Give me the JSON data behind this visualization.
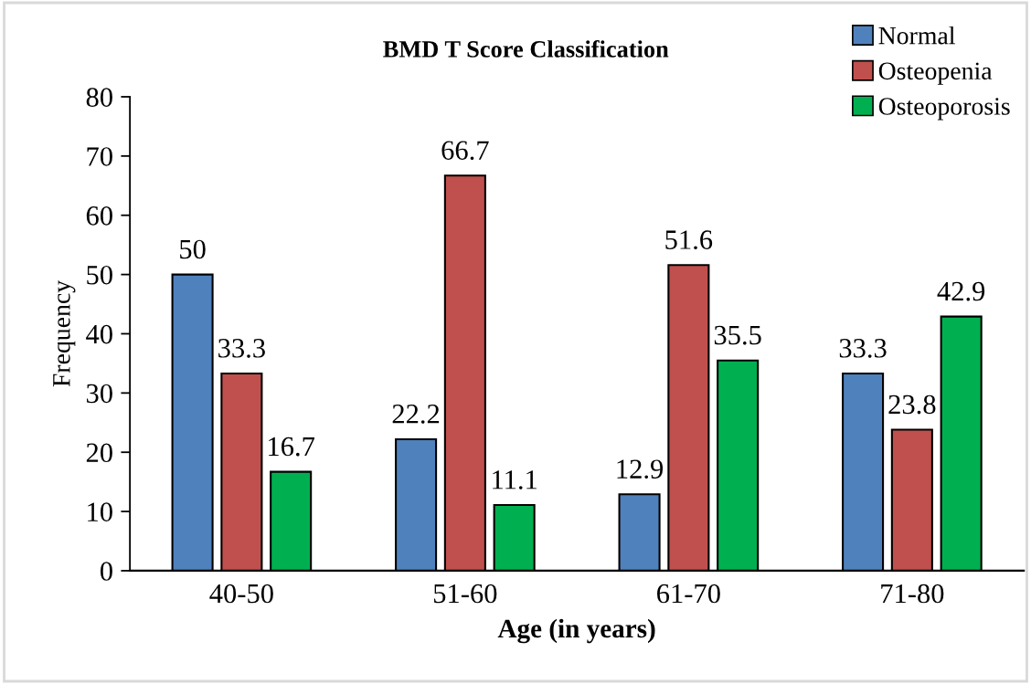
{
  "chart_data": {
    "type": "bar",
    "title": "BMD T Score Classification",
    "xlabel": "Age (in years)",
    "ylabel": "Frequency",
    "categories": [
      "40-50",
      "51-60",
      "61-70",
      "71-80"
    ],
    "series": [
      {
        "name": "Normal",
        "color": "#4f81bd",
        "values": [
          50,
          22.2,
          12.9,
          33.3
        ]
      },
      {
        "name": "Osteopenia",
        "color": "#c0504d",
        "values": [
          33.3,
          66.7,
          51.6,
          23.8
        ]
      },
      {
        "name": "Osteoporosis",
        "color": "#00b050",
        "values": [
          16.7,
          11.1,
          35.5,
          42.9
        ]
      }
    ],
    "ylim": [
      0,
      80
    ],
    "yticks": [
      0,
      10,
      20,
      30,
      40,
      50,
      60,
      70,
      80
    ],
    "data_labels": true,
    "legend": "top right",
    "grid": false
  }
}
